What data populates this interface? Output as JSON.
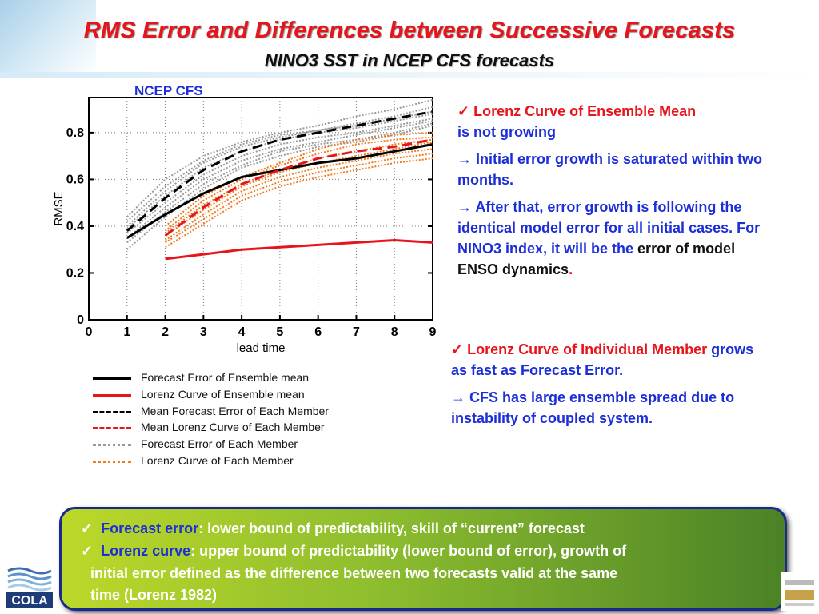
{
  "header": {
    "title": "RMS Error and Differences between Successive Forecasts",
    "subtitle": "NINO3 SST in NCEP CFS forecasts"
  },
  "chart_label": "NCEP CFS",
  "chart_data": {
    "type": "line",
    "xlabel": "lead time",
    "ylabel": "RMSE",
    "xlim": [
      0,
      9
    ],
    "ylim": [
      0,
      0.95
    ],
    "x_ticks": [
      "0",
      "1",
      "2",
      "3",
      "4",
      "5",
      "6",
      "7",
      "8",
      "9"
    ],
    "y_ticks": [
      "0",
      "0.2",
      "0.4",
      "0.6",
      "0.8"
    ],
    "series": [
      {
        "name": "Forecast Error of Ensemble mean",
        "color": "#000000",
        "dash": "solid",
        "x": [
          1,
          2,
          3,
          4,
          5,
          6,
          7,
          8,
          9
        ],
        "values": [
          0.35,
          0.45,
          0.54,
          0.61,
          0.64,
          0.67,
          0.69,
          0.72,
          0.75
        ]
      },
      {
        "name": "Lorenz Curve of Ensemble mean",
        "color": "#e8141b",
        "dash": "solid",
        "x": [
          2,
          3,
          4,
          5,
          6,
          7,
          8,
          9
        ],
        "values": [
          0.26,
          0.28,
          0.3,
          0.31,
          0.32,
          0.33,
          0.34,
          0.33
        ]
      },
      {
        "name": "Mean Forecast Error of Each Member",
        "color": "#000000",
        "dash": "dash",
        "x": [
          1,
          2,
          3,
          4,
          5,
          6,
          7,
          8,
          9
        ],
        "values": [
          0.38,
          0.52,
          0.64,
          0.72,
          0.77,
          0.8,
          0.83,
          0.86,
          0.89
        ]
      },
      {
        "name": "Mean Lorenz Curve of Each Member",
        "color": "#e8141b",
        "dash": "dash",
        "x": [
          2,
          3,
          4,
          5,
          6,
          7,
          8,
          9
        ],
        "values": [
          0.36,
          0.48,
          0.58,
          0.64,
          0.69,
          0.72,
          0.74,
          0.77
        ]
      },
      {
        "name": "Forecast Error of Each Member",
        "color": "#999999",
        "dash": "dot",
        "x": [
          1,
          2,
          3,
          4,
          5,
          6,
          7,
          8,
          9
        ],
        "members": [
          [
            0.44,
            0.6,
            0.7,
            0.76,
            0.8,
            0.83,
            0.87,
            0.9,
            0.94
          ],
          [
            0.42,
            0.57,
            0.68,
            0.75,
            0.79,
            0.81,
            0.84,
            0.87,
            0.91
          ],
          [
            0.4,
            0.55,
            0.67,
            0.74,
            0.78,
            0.81,
            0.83,
            0.86,
            0.89
          ],
          [
            0.39,
            0.53,
            0.65,
            0.72,
            0.77,
            0.8,
            0.82,
            0.85,
            0.88
          ],
          [
            0.37,
            0.5,
            0.62,
            0.7,
            0.75,
            0.78,
            0.8,
            0.83,
            0.86
          ],
          [
            0.35,
            0.48,
            0.6,
            0.68,
            0.73,
            0.76,
            0.79,
            0.82,
            0.85
          ],
          [
            0.33,
            0.46,
            0.58,
            0.66,
            0.72,
            0.75,
            0.77,
            0.8,
            0.84
          ],
          [
            0.3,
            0.44,
            0.56,
            0.65,
            0.7,
            0.74,
            0.76,
            0.79,
            0.83
          ]
        ]
      },
      {
        "name": "Lorenz Curve of Each Member",
        "color": "#f07a1e",
        "dash": "dot",
        "x": [
          2,
          3,
          4,
          5,
          6,
          7,
          8,
          9
        ],
        "members": [
          [
            0.4,
            0.53,
            0.61,
            0.67,
            0.73,
            0.77,
            0.79,
            0.8
          ],
          [
            0.38,
            0.51,
            0.6,
            0.66,
            0.71,
            0.75,
            0.77,
            0.78
          ],
          [
            0.37,
            0.49,
            0.58,
            0.64,
            0.69,
            0.72,
            0.75,
            0.77
          ],
          [
            0.36,
            0.47,
            0.57,
            0.63,
            0.67,
            0.7,
            0.73,
            0.76
          ],
          [
            0.34,
            0.45,
            0.55,
            0.61,
            0.65,
            0.68,
            0.71,
            0.73
          ],
          [
            0.33,
            0.43,
            0.53,
            0.59,
            0.63,
            0.66,
            0.69,
            0.71
          ],
          [
            0.31,
            0.41,
            0.51,
            0.57,
            0.61,
            0.64,
            0.67,
            0.69
          ]
        ]
      }
    ]
  },
  "legend": [
    {
      "label": "Forecast Error of Ensemble mean",
      "color": "#000000",
      "style": "solid"
    },
    {
      "label": "Lorenz Curve of Ensemble mean",
      "color": "#e8141b",
      "style": "solid"
    },
    {
      "label": "Mean Forecast Error of Each Member",
      "color": "#000000",
      "style": "dashed"
    },
    {
      "label": "Mean Lorenz Curve of Each Member",
      "color": "#e8141b",
      "style": "dashed"
    },
    {
      "label": "Forecast Error of Each Member",
      "color": "#999999",
      "style": "dotted"
    },
    {
      "label": "Lorenz Curve of Each Member",
      "color": "#f07a1e",
      "style": "dotted"
    }
  ],
  "notes_top": {
    "b1": "✓ Lorenz Curve of Ensemble Mean",
    "b1b": "is not growing",
    "b2": "→ Initial error growth is saturated within two months.",
    "b3a": "→ After that, error growth is following the identical model error for all initial cases. For NINO3 index, it will be the ",
    "b3b": "error of model ENSO dynamics",
    "b3c": "."
  },
  "notes_bottom": {
    "b1": "✓ Lorenz Curve of Individual Member",
    "b1b": " grows as fast as Forecast Error.",
    "b2": "→ CFS has large ensemble spread due to instability of coupled system."
  },
  "summary": {
    "l1_check": "✓",
    "l1_term": "Forecast error",
    "l1_rest": ": lower bound of predictability, skill of “current” forecast",
    "l2_check": "✓",
    "l2_term": "Lorenz curve",
    "l2_rest": ": upper bound of predictability (lower bound of error), growth of",
    "l3": "initial error defined as the difference between two forecasts valid at the same",
    "l4": "time (Lorenz 1982)"
  },
  "logos": {
    "left": "COLA"
  },
  "colors": {
    "title": "#e8141b",
    "blue_text": "#1c2ed8",
    "box_green_start": "#bcd82a",
    "box_green_end": "#4b8226"
  }
}
